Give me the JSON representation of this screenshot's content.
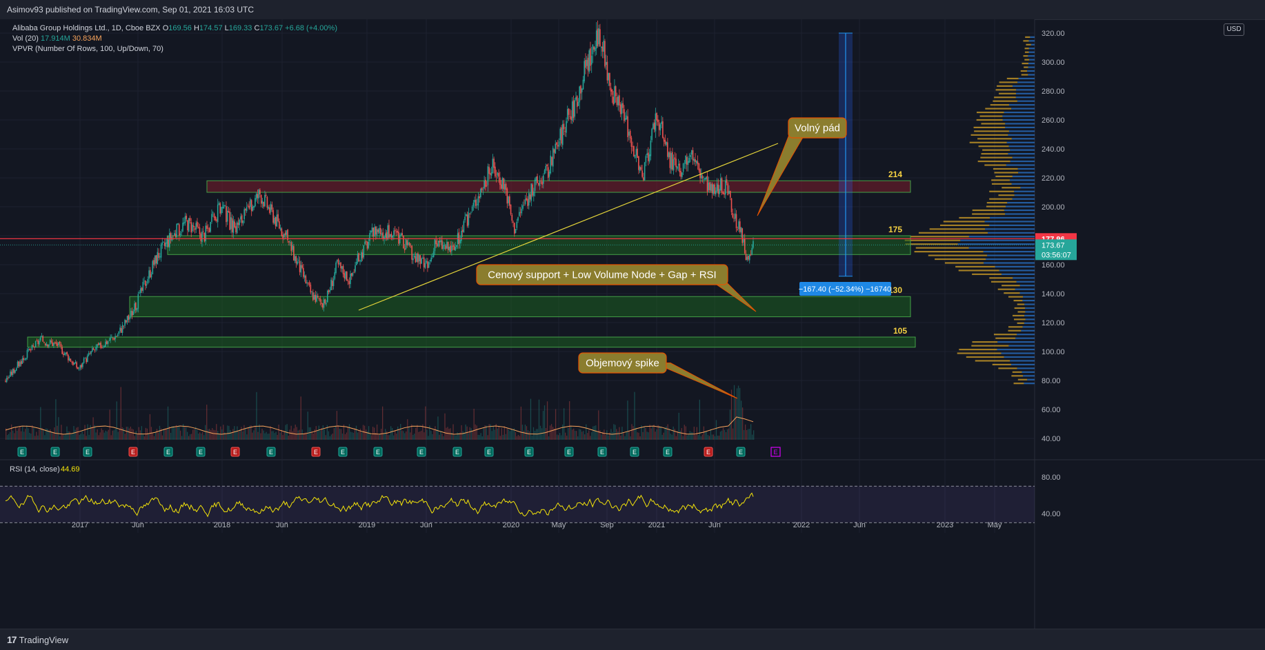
{
  "header": {
    "published": "Asimov93 published on TradingView.com, Sep 01, 2021 16:03 UTC"
  },
  "legend": {
    "symbol": "Alibaba Group Holdings Ltd., 1D, Cboe BZX",
    "o_label": "O",
    "o": "169.56",
    "h_label": "H",
    "h": "174.57",
    "l_label": "L",
    "l": "169.33",
    "c_label": "C",
    "c": "173.67",
    "change": "+6.68 (+4.00%)",
    "vol_label": "Vol (20)",
    "vol": "17.914M",
    "vol_ma": "30.834M",
    "vpvr": "VPVR (Number Of Rows, 100, Up/Down, 70)"
  },
  "currency": "USD",
  "footer": {
    "brand": "TradingView",
    "logo": "17"
  },
  "chart_data": {
    "type": "candlestick",
    "x_ticks": [
      "2017",
      "Jun",
      "2018",
      "Jun",
      "2019",
      "Jun",
      "2020",
      "May",
      "Sep",
      "2021",
      "Jun",
      "2022",
      "Jun",
      "2023",
      "May"
    ],
    "y_ticks": [
      "320.00",
      "300.00",
      "280.00",
      "260.00",
      "240.00",
      "220.00",
      "200.00",
      "180.00",
      "160.00",
      "140.00",
      "120.00",
      "100.00",
      "80.00",
      "60.00",
      "40.00"
    ],
    "ylim": [
      35,
      325
    ],
    "price_path": [
      [
        0,
        80
      ],
      [
        0.02,
        95
      ],
      [
        0.04,
        108
      ],
      [
        0.06,
        105
      ],
      [
        0.075,
        95
      ],
      [
        0.085,
        88
      ],
      [
        0.1,
        100
      ],
      [
        0.13,
        112
      ],
      [
        0.15,
        130
      ],
      [
        0.16,
        145
      ],
      [
        0.175,
        165
      ],
      [
        0.19,
        178
      ],
      [
        0.21,
        190
      ],
      [
        0.23,
        180
      ],
      [
        0.25,
        200
      ],
      [
        0.265,
        185
      ],
      [
        0.28,
        195
      ],
      [
        0.295,
        210
      ],
      [
        0.31,
        195
      ],
      [
        0.325,
        180
      ],
      [
        0.34,
        160
      ],
      [
        0.355,
        140
      ],
      [
        0.37,
        132
      ],
      [
        0.385,
        160
      ],
      [
        0.4,
        150
      ],
      [
        0.41,
        165
      ],
      [
        0.43,
        185
      ],
      [
        0.455,
        180
      ],
      [
        0.475,
        165
      ],
      [
        0.49,
        158
      ],
      [
        0.5,
        175
      ],
      [
        0.52,
        170
      ],
      [
        0.535,
        190
      ],
      [
        0.55,
        210
      ],
      [
        0.565,
        228
      ],
      [
        0.58,
        215
      ],
      [
        0.59,
        185
      ],
      [
        0.6,
        200
      ],
      [
        0.615,
        215
      ],
      [
        0.63,
        225
      ],
      [
        0.645,
        250
      ],
      [
        0.66,
        270
      ],
      [
        0.675,
        300
      ],
      [
        0.69,
        318
      ],
      [
        0.7,
        290
      ],
      [
        0.71,
        270
      ],
      [
        0.72,
        260
      ],
      [
        0.73,
        240
      ],
      [
        0.74,
        218
      ],
      [
        0.755,
        265
      ],
      [
        0.77,
        235
      ],
      [
        0.785,
        220
      ],
      [
        0.795,
        240
      ],
      [
        0.805,
        225
      ],
      [
        0.82,
        210
      ],
      [
        0.835,
        215
      ],
      [
        0.845,
        195
      ],
      [
        0.855,
        180
      ],
      [
        0.862,
        158
      ],
      [
        0.868,
        174
      ]
    ],
    "levels": [
      {
        "label": "214",
        "low": 210,
        "high": 218,
        "color": "#7b1e2c",
        "from": "2018",
        "to": "Nov 2022"
      },
      {
        "label": "175",
        "low": 167,
        "high": 180,
        "color": "#1b5e20",
        "from": "Aug 2017",
        "to": "Nov 2022"
      },
      {
        "label": "130",
        "low": 124,
        "high": 138,
        "color": "#1b5e20",
        "from": "May 2017",
        "to": "Nov 2022"
      },
      {
        "label": "105",
        "low": 103,
        "high": 110,
        "color": "#1b5e20",
        "from": "Oct 2016",
        "to": "Nov 2022"
      }
    ],
    "last_price": "173.67",
    "countdown": "03:56:07",
    "red_line_price": "177.96",
    "measure_label": "−167.40 (−52.34%) −16740",
    "annotations": {
      "free_fall": "Volný pád",
      "support": "Cenový support + Low Volume Node + Gap + RSI",
      "spike": "Objemový spike"
    },
    "rsi": {
      "label": "RSI (14, close)",
      "value": "44.69",
      "ticks": [
        "80.00",
        "40.00"
      ],
      "upper": 70,
      "lower": 30
    },
    "colors": {
      "up": "#26a69a",
      "down": "#ef5350",
      "rsi": "#f5e50a",
      "trend": "#e6d63a",
      "vpvr_up": "#2a73c9",
      "vpvr_down": "#d4a227"
    }
  }
}
